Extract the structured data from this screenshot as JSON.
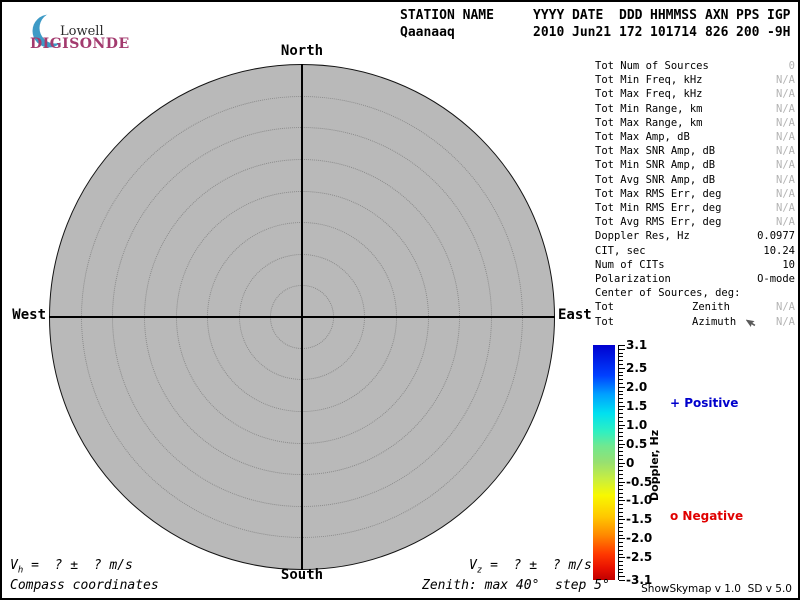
{
  "logo": {
    "brand_top": "Lowell",
    "brand_bottom": "DIGISONDE",
    "brand_color": "#a33a6e",
    "crescent_color": "#3d9ac6"
  },
  "header": {
    "columns": [
      "STATION NAME",
      "YYYY",
      "DATE",
      "DDD",
      "HHMMSS",
      "AXN",
      "PPS",
      "IGP"
    ],
    "values": [
      "Qaanaaq",
      "2010",
      "Jun21",
      "172",
      "101714",
      "826",
      "200",
      "-9H"
    ]
  },
  "compass": {
    "north": "North",
    "south": "South",
    "east": "East",
    "west": "West"
  },
  "polar": {
    "fill_color": "#b9b9b9",
    "max_zenith_deg": 40,
    "step_deg": 5,
    "num_rings": 8
  },
  "stats": {
    "muted_value_color": "#b3b3b3",
    "rows": [
      {
        "label": "Tot Num of Sources",
        "value": "0",
        "muted": true
      },
      {
        "label": "Tot Min Freq, kHz",
        "value": "N/A",
        "muted": true
      },
      {
        "label": "Tot Max Freq, kHz",
        "value": "N/A",
        "muted": true
      },
      {
        "label": "Tot Min Range, km",
        "value": "N/A",
        "muted": true
      },
      {
        "label": "Tot Max Range, km",
        "value": "N/A",
        "muted": true
      },
      {
        "label": "Tot Max Amp, dB",
        "value": "N/A",
        "muted": true
      },
      {
        "label": "Tot Max SNR Amp, dB",
        "value": "N/A",
        "muted": true
      },
      {
        "label": "Tot Min SNR Amp, dB",
        "value": "N/A",
        "muted": true
      },
      {
        "label": "Tot Avg SNR Amp, dB",
        "value": "N/A",
        "muted": true
      },
      {
        "label": "Tot Max RMS Err, deg",
        "value": "N/A",
        "muted": true
      },
      {
        "label": "Tot Min RMS Err, deg",
        "value": "N/A",
        "muted": true
      },
      {
        "label": "Tot Avg RMS Err, deg",
        "value": "N/A",
        "muted": true
      },
      {
        "label": "Doppler Res, Hz",
        "value": "0.0977",
        "muted": false
      },
      {
        "label": "CIT, sec",
        "value": "10.24",
        "muted": false
      },
      {
        "label": "Num of CITs",
        "value": "10",
        "muted": false
      },
      {
        "label": "Polarization",
        "value": "O-mode",
        "muted": false
      },
      {
        "label": "Center of Sources, deg:",
        "value": "",
        "muted": false
      },
      {
        "label": "Tot",
        "mid": "Zenith",
        "value": "N/A",
        "muted": true
      },
      {
        "label": "Tot",
        "mid": "Azimuth",
        "icon": "cursor",
        "value": "N/A",
        "muted": true
      }
    ]
  },
  "colorbar": {
    "title": "Doppler, Hz",
    "max": 3.1,
    "min": -3.1,
    "minor_step": 0.1,
    "tick_labels": [
      {
        "v": 3.1,
        "text": "3.1"
      },
      {
        "v": 2.5,
        "text": "2.5"
      },
      {
        "v": 2.0,
        "text": "2.0"
      },
      {
        "v": 1.5,
        "text": "1.5"
      },
      {
        "v": 1.0,
        "text": "1.0"
      },
      {
        "v": 0.5,
        "text": "0.5"
      },
      {
        "v": 0.0,
        "text": "0"
      },
      {
        "v": -0.5,
        "text": "-0.5"
      },
      {
        "v": -1.0,
        "text": "-1.0"
      },
      {
        "v": -1.5,
        "text": "-1.5"
      },
      {
        "v": -2.0,
        "text": "-2.0"
      },
      {
        "v": -2.5,
        "text": "-2.5"
      },
      {
        "v": -3.1,
        "text": "-3.1"
      }
    ],
    "gradient": [
      "#0000d0 0%",
      "#0040ff 13%",
      "#00a0ff 21%",
      "#00e0f0 29%",
      "#30f0c0 37%",
      "#70e890 43%",
      "#98e070 50%",
      "#c8ee40 57%",
      "#f8f800 64%",
      "#ffc800 73%",
      "#ff8800 81%",
      "#ff3800 89%",
      "#e81000 95%",
      "#c00000 100%"
    ],
    "positive_label": "+ Positive",
    "negative_label": "o Negative",
    "positive_color": "#0000cc",
    "negative_color": "#e00000"
  },
  "footer": {
    "vh_prefix": "V",
    "vh_sub": "h",
    "vh_rest": " =  ? ±  ? m/s",
    "vz_prefix": "V",
    "vz_sub": "z",
    "vz_rest": " =  ? ±  ? m/s",
    "coords_label": "Compass coordinates",
    "zenith_label": "Zenith: max 40°  step 5°",
    "credit": "ShowSkymap v 1.0  SD v 5.0"
  }
}
